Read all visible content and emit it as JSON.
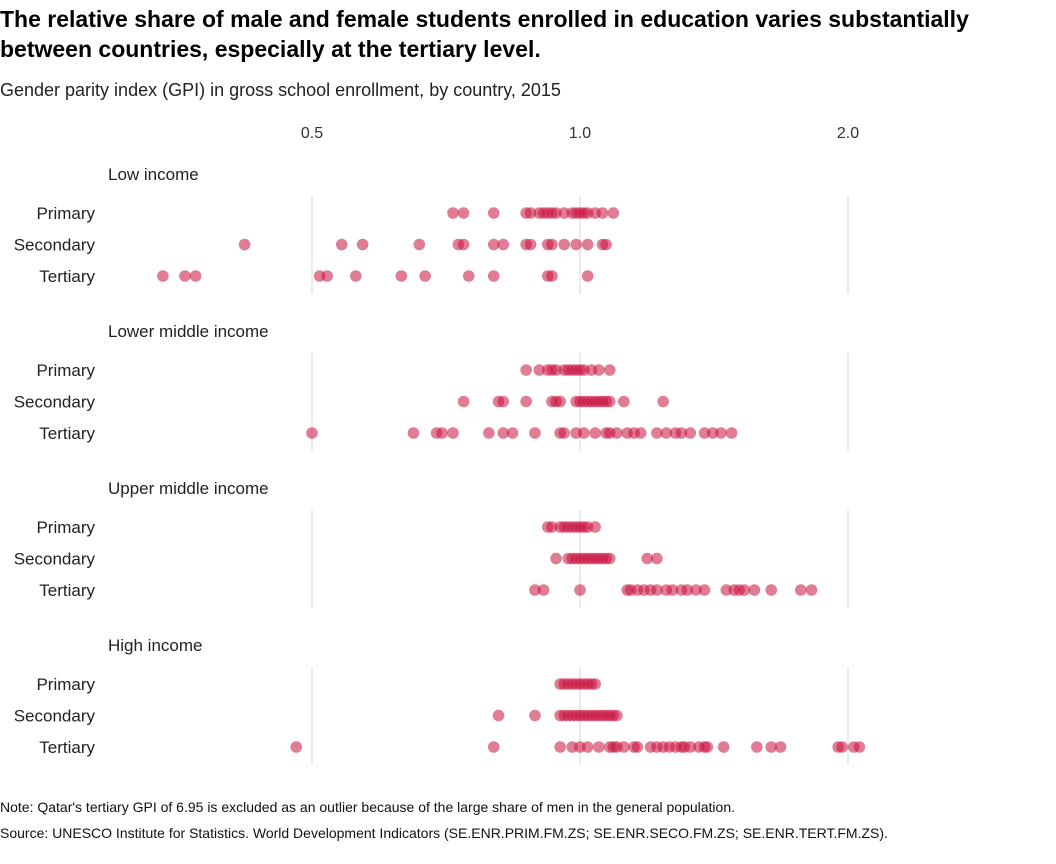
{
  "title": "The relative share of male and female students enrolled in education varies substantially between countries, especially at the tertiary level.",
  "subtitle": "Gender parity index (GPI) in gross school enrollment, by country, 2015",
  "note": "Note: Qatar's tertiary GPI of 6.95 is excluded as an outlier because of the large share of men in the general population.",
  "source": "Source: UNESCO Institute for Statistics. World Development Indicators (SE.ENR.PRIM.FM.ZS; SE.ENR.SECO.FM.ZS; SE.ENR.TERT.FM.ZS).",
  "colors": {
    "point": "#c8103e",
    "grid": "#e3e3e3"
  },
  "chart_data": {
    "type": "scatter",
    "x_scale": "log2",
    "xlim": [
      0.5,
      2.0
    ],
    "x_ticks": [
      0.5,
      1.0,
      2.0
    ],
    "x_tick_labels": [
      "0.5",
      "1.0",
      "2.0"
    ],
    "rows": [
      "Primary",
      "Secondary",
      "Tertiary"
    ],
    "groups": [
      {
        "name": "Low income",
        "series": [
          {
            "level": "Primary",
            "values": [
              0.72,
              0.74,
              0.8,
              0.87,
              0.88,
              0.9,
              0.91,
              0.92,
              0.93,
              0.94,
              0.96,
              0.98,
              0.99,
              1.0,
              1.01,
              1.02,
              1.04,
              1.06,
              1.09
            ]
          },
          {
            "level": "Secondary",
            "values": [
              0.42,
              0.54,
              0.57,
              0.66,
              0.73,
              0.74,
              0.8,
              0.82,
              0.87,
              0.88,
              0.92,
              0.93,
              0.96,
              0.99,
              1.02,
              1.06,
              1.07
            ]
          },
          {
            "level": "Tertiary",
            "values": [
              0.34,
              0.36,
              0.37,
              0.51,
              0.52,
              0.56,
              0.63,
              0.67,
              0.75,
              0.8,
              0.92,
              0.93,
              1.02
            ]
          }
        ]
      },
      {
        "name": "Lower middle income",
        "series": [
          {
            "level": "Primary",
            "values": [
              0.87,
              0.9,
              0.92,
              0.93,
              0.94,
              0.96,
              0.97,
              0.98,
              0.99,
              1.0,
              1.01,
              1.03,
              1.05,
              1.08
            ]
          },
          {
            "level": "Secondary",
            "values": [
              0.74,
              0.81,
              0.82,
              0.87,
              0.93,
              0.94,
              0.95,
              0.99,
              1.0,
              1.01,
              1.02,
              1.03,
              1.04,
              1.05,
              1.06,
              1.07,
              1.08,
              1.12,
              1.24
            ]
          },
          {
            "level": "Tertiary",
            "values": [
              0.5,
              0.65,
              0.69,
              0.7,
              0.72,
              0.79,
              0.82,
              0.84,
              0.89,
              0.95,
              0.96,
              0.99,
              1.01,
              1.04,
              1.07,
              1.08,
              1.1,
              1.13,
              1.15,
              1.17,
              1.22,
              1.25,
              1.28,
              1.3,
              1.33,
              1.38,
              1.41,
              1.44,
              1.48
            ]
          }
        ]
      },
      {
        "name": "Upper middle income",
        "series": [
          {
            "level": "Primary",
            "values": [
              0.92,
              0.93,
              0.95,
              0.96,
              0.97,
              0.98,
              0.99,
              1.0,
              1.01,
              1.02,
              1.04
            ]
          },
          {
            "level": "Secondary",
            "values": [
              0.94,
              0.97,
              0.98,
              0.99,
              1.0,
              1.01,
              1.02,
              1.03,
              1.04,
              1.05,
              1.06,
              1.07,
              1.08,
              1.19,
              1.22
            ]
          },
          {
            "level": "Tertiary",
            "values": [
              0.89,
              0.91,
              1.0,
              1.13,
              1.14,
              1.16,
              1.18,
              1.2,
              1.22,
              1.25,
              1.27,
              1.3,
              1.32,
              1.35,
              1.38,
              1.46,
              1.49,
              1.51,
              1.53,
              1.57,
              1.64,
              1.77,
              1.82
            ]
          }
        ]
      },
      {
        "name": "High income",
        "series": [
          {
            "level": "Primary",
            "values": [
              0.95,
              0.96,
              0.97,
              0.98,
              0.99,
              1.0,
              1.01,
              1.02,
              1.03,
              1.04
            ]
          },
          {
            "level": "Secondary",
            "values": [
              0.81,
              0.89,
              0.95,
              0.96,
              0.97,
              0.98,
              0.99,
              1.0,
              1.01,
              1.02,
              1.03,
              1.04,
              1.05,
              1.06,
              1.07,
              1.08,
              1.09,
              1.1
            ]
          },
          {
            "level": "Tertiary",
            "values": [
              0.48,
              0.8,
              0.95,
              0.98,
              1.0,
              1.02,
              1.05,
              1.08,
              1.09,
              1.1,
              1.12,
              1.15,
              1.16,
              1.2,
              1.22,
              1.24,
              1.26,
              1.28,
              1.3,
              1.31,
              1.33,
              1.36,
              1.38,
              1.39,
              1.45,
              1.58,
              1.64,
              1.68,
              1.95,
              1.97,
              2.03,
              2.06
            ]
          }
        ]
      }
    ]
  }
}
